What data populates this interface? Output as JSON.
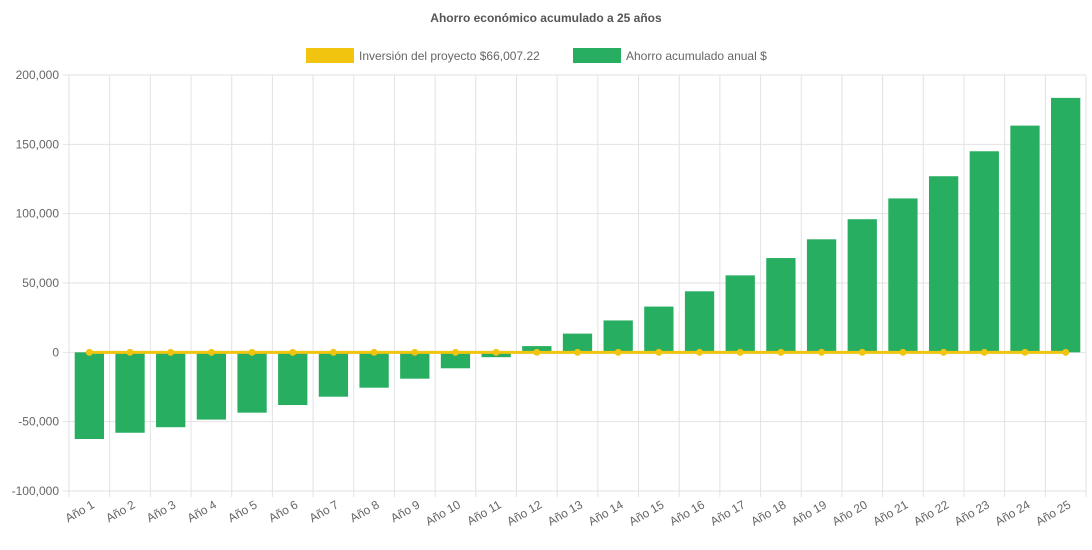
{
  "chart_data": {
    "type": "bar",
    "title": "Ahorro económico acumulado a 25 años",
    "categories": [
      "Año 1",
      "Año 2",
      "Año 3",
      "Año 4",
      "Año 5",
      "Año 6",
      "Año 7",
      "Año 8",
      "Año 9",
      "Año 10",
      "Año 11",
      "Año 12",
      "Año 13",
      "Año 14",
      "Año 15",
      "Año 16",
      "Año 17",
      "Año 18",
      "Año 19",
      "Año 20",
      "Año 21",
      "Año 22",
      "Año 23",
      "Año 24",
      "Año 25"
    ],
    "series": [
      {
        "name": "Inversión del proyecto $66,007.22",
        "kind": "line",
        "color": "#f1c40f",
        "values": [
          0,
          0,
          0,
          0,
          0,
          0,
          0,
          0,
          0,
          0,
          0,
          0,
          0,
          0,
          0,
          0,
          0,
          0,
          0,
          0,
          0,
          0,
          0,
          0,
          0
        ]
      },
      {
        "name": "Ahorro acumulado anual $",
        "kind": "bar",
        "color": "#27ae60",
        "values": [
          -62500,
          -58000,
          -54000,
          -48500,
          -43500,
          -38000,
          -32000,
          -25500,
          -19000,
          -11500,
          -3500,
          4500,
          13500,
          23000,
          33000,
          44000,
          55500,
          68000,
          81500,
          96000,
          111000,
          127000,
          145000,
          163500,
          183500
        ]
      }
    ],
    "ylim": [
      -100000,
      200000
    ],
    "yticks": [
      -100000,
      -50000,
      0,
      50000,
      100000,
      150000,
      200000
    ],
    "ytick_labels": [
      "-100,000",
      "-50,000",
      "0",
      "50,000",
      "100,000",
      "150,000",
      "200,000"
    ],
    "grid": true,
    "legend_position": "top-center"
  }
}
